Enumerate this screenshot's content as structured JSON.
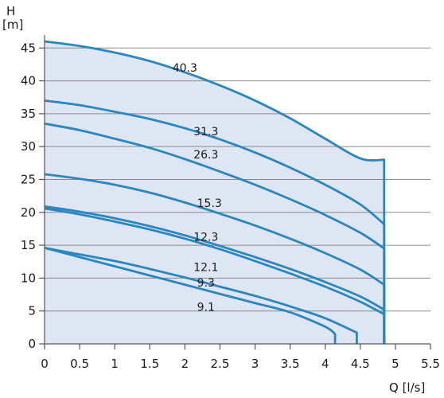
{
  "chart_data": {
    "type": "line",
    "ylabel": "H",
    "yunit": "[m]",
    "xlabel": "Q [l/s]",
    "xlim": [
      0,
      5.5
    ],
    "ylim": [
      0,
      46
    ],
    "xticks": [
      0,
      0.5,
      1,
      1.5,
      2,
      2.5,
      3,
      3.5,
      4,
      4.5,
      5,
      5.5
    ],
    "xtick_labels": [
      "0",
      "0.5",
      "1",
      "1.5",
      "2",
      "2.5",
      "3",
      "3.5",
      "4",
      "4.5",
      "5",
      "5.5"
    ],
    "yticks": [
      0,
      5,
      10,
      15,
      20,
      25,
      30,
      35,
      40,
      45
    ],
    "ytick_labels": [
      "0",
      "5",
      "10",
      "15",
      "20",
      "25",
      "30",
      "35",
      "40",
      "45"
    ],
    "grid": "horizontal",
    "colors": {
      "curve": "#2a86bf",
      "area": "#dde6f2",
      "grid": "#8a8a8a",
      "axis": "#555555"
    },
    "envelope": {
      "x": [
        0,
        0.5,
        1,
        1.5,
        2,
        2.5,
        3,
        3.5,
        4,
        4.5,
        4.84,
        4.84
      ],
      "y": [
        46.0,
        45.3,
        44.3,
        43.0,
        41.3,
        39.3,
        37.0,
        34.3,
        31.2,
        28.2,
        28.0,
        0
      ]
    },
    "series": [
      {
        "name": "40.3",
        "x": [
          0,
          0.5,
          1,
          1.5,
          2,
          2.5,
          3,
          3.5,
          4,
          4.5,
          4.84
        ],
        "y": [
          46.0,
          45.3,
          44.3,
          43.0,
          41.3,
          39.3,
          37.0,
          34.3,
          31.2,
          28.2,
          28.0
        ],
        "end_drop": true,
        "label_at": [
          2.0,
          42.0
        ]
      },
      {
        "name": "31.3",
        "x": [
          0,
          0.5,
          1,
          1.5,
          2,
          2.5,
          3,
          3.5,
          4,
          4.5,
          4.84
        ],
        "y": [
          37.0,
          36.3,
          35.3,
          34.2,
          32.8,
          31.1,
          29.1,
          26.8,
          24.2,
          21.2,
          18.2
        ],
        "end_drop": true,
        "label_at": [
          2.3,
          32.3
        ]
      },
      {
        "name": "26.3",
        "x": [
          0,
          0.5,
          1,
          1.5,
          2,
          2.5,
          3,
          3.5,
          4,
          4.5,
          4.84
        ],
        "y": [
          33.5,
          32.5,
          31.2,
          29.8,
          28.1,
          26.2,
          24.2,
          22.0,
          19.6,
          16.9,
          14.5
        ],
        "end_drop": true,
        "label_at": [
          2.3,
          28.8
        ]
      },
      {
        "name": "15.3",
        "x": [
          0,
          0.5,
          1,
          1.5,
          2,
          2.5,
          3,
          3.5,
          4,
          4.5,
          4.84
        ],
        "y": [
          25.8,
          25.1,
          24.2,
          23.0,
          21.5,
          19.8,
          18.0,
          16.0,
          13.8,
          11.3,
          9.0
        ],
        "end_drop": true,
        "label_at": [
          2.35,
          21.4
        ]
      },
      {
        "name": "12.3",
        "x": [
          0,
          0.5,
          1,
          1.5,
          2,
          2.5,
          3,
          3.5,
          4,
          4.5,
          4.84
        ],
        "y": [
          20.9,
          20.1,
          19.1,
          17.9,
          16.5,
          14.9,
          13.2,
          11.4,
          9.4,
          7.2,
          5.2
        ],
        "end_drop": true,
        "label_at": [
          2.3,
          16.3
        ]
      },
      {
        "name": "12.1",
        "x": [
          0,
          0.5,
          1,
          1.5,
          2,
          2.5,
          3,
          3.5,
          4,
          4.5,
          4.84
        ],
        "y": [
          20.6,
          19.7,
          18.6,
          17.4,
          16.0,
          14.4,
          12.6,
          10.7,
          8.7,
          6.4,
          4.5
        ],
        "end_drop": true,
        "label_at": [
          2.3,
          11.7
        ]
      },
      {
        "name": "9.3",
        "x": [
          0,
          0.5,
          1,
          1.5,
          2,
          2.5,
          3,
          3.5,
          4,
          4.45
        ],
        "y": [
          14.6,
          13.6,
          12.6,
          11.4,
          10.1,
          8.7,
          7.3,
          5.7,
          3.9,
          1.7
        ],
        "end_drop": true,
        "label_at": [
          2.3,
          9.3
        ]
      },
      {
        "name": "9.1",
        "x": [
          0,
          0.5,
          1,
          1.5,
          2,
          2.5,
          3,
          3.5,
          4,
          4.14
        ],
        "y": [
          14.6,
          13.2,
          11.8,
          10.4,
          9.0,
          7.6,
          6.2,
          4.8,
          2.6,
          1.5
        ],
        "end_drop": true,
        "label_at": [
          2.3,
          5.6
        ]
      }
    ]
  }
}
